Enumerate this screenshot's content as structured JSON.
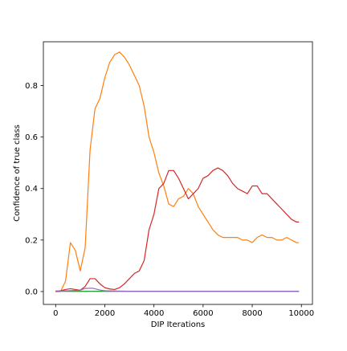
{
  "chart_data": {
    "type": "line",
    "title": "",
    "xlabel": "DIP Iterations",
    "ylabel": "Confidence of true class",
    "xlim": [
      -500,
      10450
    ],
    "ylim": [
      -0.05,
      0.97
    ],
    "xticks": [
      0,
      2000,
      4000,
      6000,
      8000,
      10000
    ],
    "xtick_labels": [
      "0",
      "2000",
      "4000",
      "6000",
      "8000",
      "10000"
    ],
    "yticks": [
      0.0,
      0.2,
      0.4,
      0.6,
      0.8
    ],
    "ytick_labels": [
      "0.0",
      "0.2",
      "0.4",
      "0.6",
      "0.8"
    ],
    "grid": false,
    "legend": "none",
    "series": [
      {
        "color": "#1f77b4",
        "x": [
          0,
          500,
          1000,
          1500,
          2000,
          2500,
          3000,
          3500,
          4000,
          4500,
          5000,
          5500,
          6000,
          6500,
          7000,
          7500,
          8000,
          8500,
          9000,
          9500,
          9900
        ],
        "y": [
          0.002,
          0.001,
          0.001,
          0.001,
          0.001,
          0.001,
          0.001,
          0.001,
          0.001,
          0.001,
          0.001,
          0.001,
          0.001,
          0.001,
          0.001,
          0.001,
          0.001,
          0.001,
          0.001,
          0.001,
          0.001
        ]
      },
      {
        "color": "#ff7f0e",
        "x": [
          0,
          200,
          400,
          600,
          800,
          1000,
          1200,
          1400,
          1600,
          1800,
          2000,
          2200,
          2400,
          2600,
          2800,
          3000,
          3200,
          3400,
          3600,
          3800,
          4000,
          4200,
          4400,
          4600,
          4800,
          5000,
          5200,
          5400,
          5600,
          5800,
          6000,
          6200,
          6400,
          6600,
          6800,
          7000,
          7200,
          7400,
          7600,
          7800,
          8000,
          8200,
          8400,
          8600,
          8800,
          9000,
          9200,
          9400,
          9600,
          9800,
          9900
        ],
        "y": [
          0.0,
          0.0,
          0.04,
          0.19,
          0.16,
          0.08,
          0.17,
          0.55,
          0.71,
          0.75,
          0.83,
          0.89,
          0.92,
          0.93,
          0.91,
          0.88,
          0.84,
          0.8,
          0.72,
          0.6,
          0.54,
          0.46,
          0.41,
          0.34,
          0.33,
          0.36,
          0.37,
          0.4,
          0.38,
          0.33,
          0.3,
          0.27,
          0.24,
          0.22,
          0.21,
          0.21,
          0.21,
          0.21,
          0.2,
          0.2,
          0.19,
          0.21,
          0.22,
          0.21,
          0.21,
          0.2,
          0.2,
          0.21,
          0.2,
          0.19,
          0.19
        ]
      },
      {
        "color": "#2ca02c",
        "x": [
          0,
          500,
          1000,
          1500,
          2000,
          2500,
          3000,
          3500,
          4000,
          4500,
          5000,
          5500,
          6000,
          6500,
          7000,
          7500,
          8000,
          8500,
          9000,
          9500,
          9900
        ],
        "y": [
          0.001,
          0.001,
          0.001,
          0.001,
          0.001,
          0.001,
          0.001,
          0.001,
          0.001,
          0.001,
          0.001,
          0.001,
          0.001,
          0.001,
          0.001,
          0.001,
          0.001,
          0.001,
          0.001,
          0.001,
          0.001
        ]
      },
      {
        "color": "#d62728",
        "x": [
          0,
          200,
          400,
          600,
          800,
          1000,
          1200,
          1400,
          1600,
          1800,
          2000,
          2200,
          2400,
          2600,
          2800,
          3000,
          3200,
          3400,
          3600,
          3800,
          4000,
          4200,
          4400,
          4600,
          4800,
          5000,
          5200,
          5400,
          5600,
          5800,
          6000,
          6200,
          6400,
          6600,
          6800,
          7000,
          7200,
          7400,
          7600,
          7800,
          8000,
          8200,
          8400,
          8600,
          8800,
          9000,
          9200,
          9400,
          9600,
          9800,
          9900
        ],
        "y": [
          0.0,
          0.003,
          0.008,
          0.011,
          0.008,
          0.005,
          0.02,
          0.05,
          0.05,
          0.03,
          0.015,
          0.01,
          0.008,
          0.015,
          0.03,
          0.05,
          0.07,
          0.08,
          0.12,
          0.24,
          0.3,
          0.4,
          0.42,
          0.47,
          0.47,
          0.44,
          0.4,
          0.36,
          0.38,
          0.4,
          0.44,
          0.45,
          0.47,
          0.48,
          0.47,
          0.45,
          0.42,
          0.4,
          0.39,
          0.38,
          0.41,
          0.41,
          0.38,
          0.38,
          0.36,
          0.34,
          0.32,
          0.3,
          0.28,
          0.27,
          0.27
        ]
      },
      {
        "color": "#9467bd",
        "x": [
          0,
          500,
          1000,
          1200,
          1500,
          1800,
          2000,
          2500,
          3000,
          3500,
          4000,
          4500,
          5000,
          5500,
          6000,
          6500,
          7000,
          7500,
          8000,
          8500,
          9000,
          9500,
          9900
        ],
        "y": [
          0.002,
          0.003,
          0.005,
          0.012,
          0.013,
          0.006,
          0.003,
          0.002,
          0.001,
          0.001,
          0.001,
          0.001,
          0.001,
          0.001,
          0.001,
          0.001,
          0.001,
          0.001,
          0.001,
          0.001,
          0.001,
          0.001,
          0.001
        ]
      }
    ]
  }
}
